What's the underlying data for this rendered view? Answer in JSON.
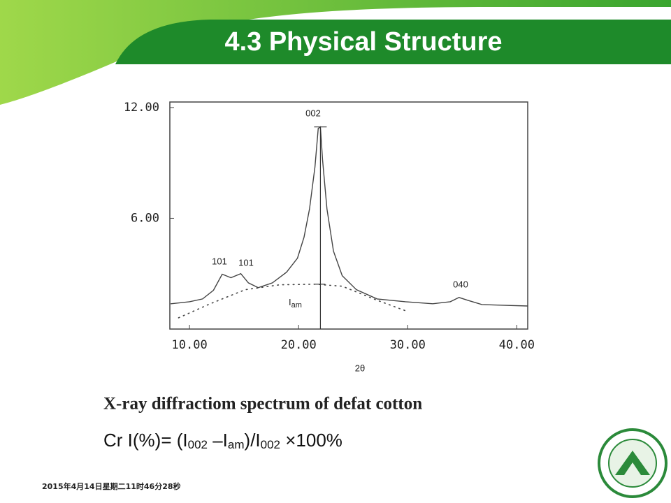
{
  "slide": {
    "title": "4.3  Physical Structure",
    "caption": "X-ray diffractiom spectrum of defat cotton",
    "formula": [
      "Cr I(%)= (I",
      "002",
      " –I",
      "am",
      ")/I",
      "002",
      " ×100%"
    ],
    "timestamp": "2015年4月14日星期二11时46分28秒"
  },
  "chart_data": {
    "type": "line",
    "x_label": "2θ",
    "xlim": [
      8.2,
      41
    ],
    "ylim": [
      0,
      12.3
    ],
    "xticks": [
      {
        "value": 10,
        "label": "10.00"
      },
      {
        "value": 20,
        "label": "20.00"
      },
      {
        "value": 30,
        "label": "30.00"
      },
      {
        "value": 40,
        "label": "40.00"
      }
    ],
    "yticks": [
      {
        "value": 6,
        "label": "6.00"
      },
      {
        "value": 12,
        "label": "12.00"
      }
    ],
    "series": [
      {
        "color": "#444444",
        "style": "solid",
        "x": [
          8.3,
          10,
          11.2,
          12.2,
          13.0,
          13.8,
          14.7,
          15.4,
          16.3,
          17.6,
          18.9,
          19.9,
          20.5,
          21.0,
          21.5,
          21.8,
          22.0,
          22.2,
          22.6,
          23.2,
          24.0,
          25.3,
          27.2,
          29.8,
          32.3,
          33.9,
          34.7,
          35.5,
          36.8,
          38.7,
          41.0
        ],
        "values": [
          1.37,
          1.48,
          1.63,
          2.1,
          2.97,
          2.78,
          3.0,
          2.5,
          2.24,
          2.5,
          3.08,
          3.84,
          4.98,
          6.5,
          8.78,
          10.87,
          10.95,
          9.16,
          6.5,
          4.22,
          2.89,
          2.13,
          1.63,
          1.48,
          1.37,
          1.48,
          1.71,
          1.56,
          1.33,
          1.29,
          1.25
        ]
      },
      {
        "color": "#444444",
        "style": "dotted",
        "x": [
          9.0,
          11.9,
          15.1,
          18.3,
          21.5,
          24.0,
          27.2,
          29.8
        ],
        "values": [
          0.61,
          1.37,
          2.13,
          2.4,
          2.43,
          2.32,
          1.56,
          0.99
        ]
      }
    ],
    "peak_line": {
      "x": 22.0,
      "top": 10.95,
      "amorphous": 2.43
    },
    "annotations": [
      "002",
      "101",
      "101",
      "040"
    ],
    "i_am_label": [
      "I",
      "am"
    ]
  }
}
